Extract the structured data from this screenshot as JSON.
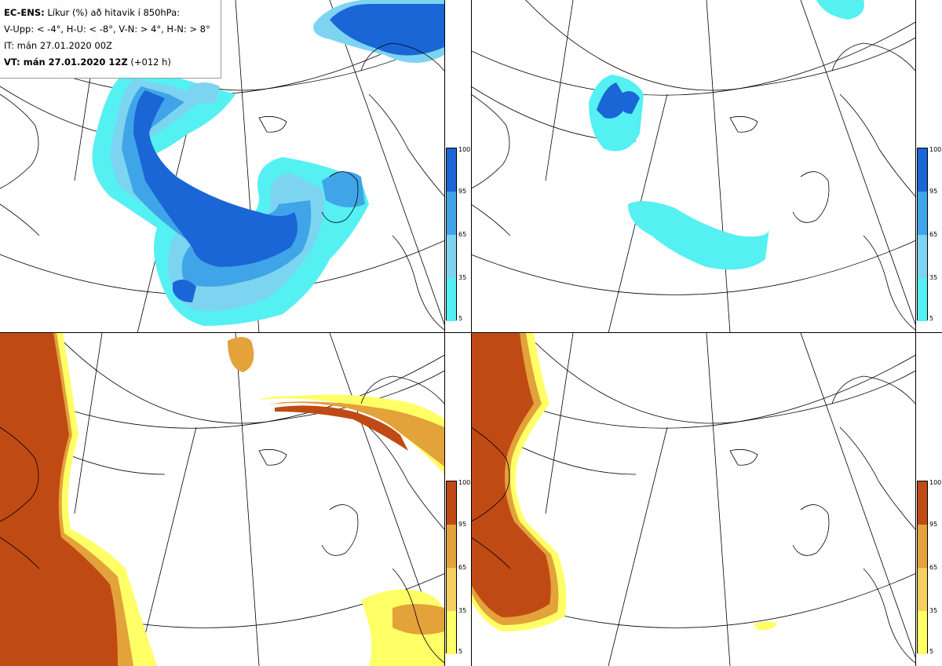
{
  "info_box": {
    "model": "EC-ENS:",
    "description": "Líkur (%) að hitavik í 850hPa:",
    "thresholds": "V-Upp: < -4°, H-U: < -8°, V-N: > 4°, H-N: > 8°",
    "initial_time": "IT: mán 27.01.2020 00Z",
    "valid_label": "VT: mán 27.01.2020 12Z",
    "lead": "(+012 h)"
  },
  "legend_ticks": [
    "100",
    "95",
    "65",
    "35",
    "5"
  ],
  "panels": [
    {
      "id": "upper-left",
      "label": "V-Upp",
      "variable": "cold anomaly < -4°",
      "palette": "blue"
    },
    {
      "id": "upper-right",
      "label": "H-U",
      "variable": "cold anomaly < -8°",
      "palette": "blue"
    },
    {
      "id": "lower-left",
      "label": "V-N",
      "variable": "warm anomaly > 4°",
      "palette": "orange"
    },
    {
      "id": "lower-right",
      "label": "H-N",
      "variable": "warm anomaly > 8°",
      "palette": "orange"
    }
  ],
  "colors": {
    "blue": [
      "#55f0f2",
      "#7dd4f0",
      "#3fa5e8",
      "#1a66d6",
      "#0f50c8"
    ],
    "orange": [
      "#ffff66",
      "#f5d060",
      "#e3a23a",
      "#d06020",
      "#c04a14"
    ],
    "land_outline": "#000000",
    "grid": "#000000"
  }
}
